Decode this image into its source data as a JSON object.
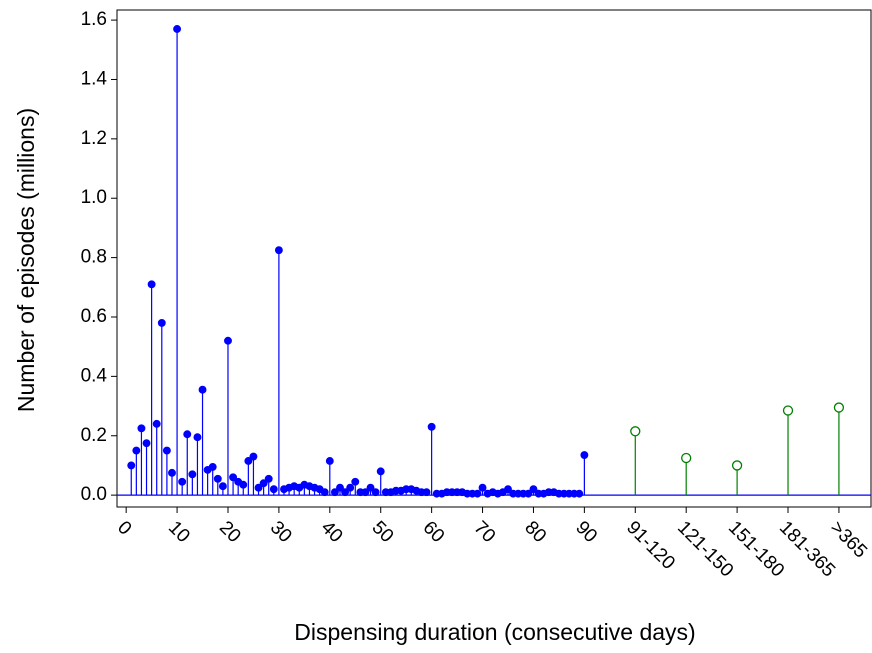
{
  "chart_data": {
    "type": "stem",
    "xlabel": "Dispensing duration (consecutive days)",
    "ylabel": "Number of episodes (millions)",
    "xlim": [
      -1.8,
      146.3
    ],
    "ylim": [
      -0.04,
      1.634
    ],
    "xticks": [
      0,
      10,
      20,
      30,
      40,
      50,
      60,
      70,
      80,
      90,
      {
        "value": 100,
        "label": "91-120"
      },
      {
        "value": 110,
        "label": "121-150"
      },
      {
        "value": 120,
        "label": "151-180"
      },
      {
        "value": 130,
        "label": "181-365"
      },
      {
        "value": 140,
        "label": ">365"
      }
    ],
    "yticks": [
      {
        "value": 0,
        "label": "0.0"
      },
      0.2,
      0.4,
      0.6,
      0.8,
      {
        "value": 1,
        "label": "1.0"
      },
      1.2,
      1.4,
      1.6
    ],
    "series": [
      {
        "color": "#0000ff",
        "marker": "filled",
        "x": [
          1,
          2,
          3,
          4,
          5,
          6,
          7,
          8,
          9,
          10,
          11,
          12,
          13,
          14,
          15,
          16,
          17,
          18,
          19,
          20,
          21,
          22,
          23,
          24,
          25,
          26,
          27,
          28,
          29,
          30,
          31,
          32,
          33,
          34,
          35,
          36,
          37,
          38,
          39,
          40,
          41,
          42,
          43,
          44,
          45,
          46,
          47,
          48,
          49,
          50,
          51,
          52,
          53,
          54,
          55,
          56,
          57,
          58,
          59,
          60,
          61,
          62,
          63,
          64,
          65,
          66,
          67,
          68,
          69,
          70,
          71,
          72,
          73,
          74,
          75,
          76,
          77,
          78,
          79,
          80,
          81,
          82,
          83,
          84,
          85,
          86,
          87,
          88,
          89,
          90
        ],
        "values": [
          0.1,
          0.15,
          0.225,
          0.175,
          0.71,
          0.24,
          0.58,
          0.15,
          0.075,
          1.57,
          0.045,
          0.205,
          0.07,
          0.195,
          0.355,
          0.085,
          0.095,
          0.055,
          0.03,
          0.52,
          0.06,
          0.045,
          0.035,
          0.115,
          0.13,
          0.025,
          0.04,
          0.055,
          0.02,
          0.825,
          0.02,
          0.025,
          0.03,
          0.025,
          0.035,
          0.03,
          0.025,
          0.02,
          0.01,
          0.115,
          0.01,
          0.025,
          0.01,
          0.025,
          0.045,
          0.01,
          0.01,
          0.025,
          0.01,
          0.08,
          0.01,
          0.01,
          0.015,
          0.015,
          0.02,
          0.02,
          0.015,
          0.01,
          0.01,
          0.23,
          0.005,
          0.005,
          0.01,
          0.01,
          0.01,
          0.01,
          0.005,
          0.005,
          0.005,
          0.025,
          0.005,
          0.01,
          0.005,
          0.01,
          0.02,
          0.005,
          0.005,
          0.005,
          0.005,
          0.02,
          0.005,
          0.005,
          0.01,
          0.01,
          0.005,
          0.005,
          0.005,
          0.005,
          0.005,
          0.135
        ]
      },
      {
        "color": "#008000",
        "marker": "open",
        "x": [
          100,
          110,
          120,
          130,
          140
        ],
        "values": [
          0.215,
          0.125,
          0.1,
          0.285,
          0.295
        ]
      }
    ]
  }
}
